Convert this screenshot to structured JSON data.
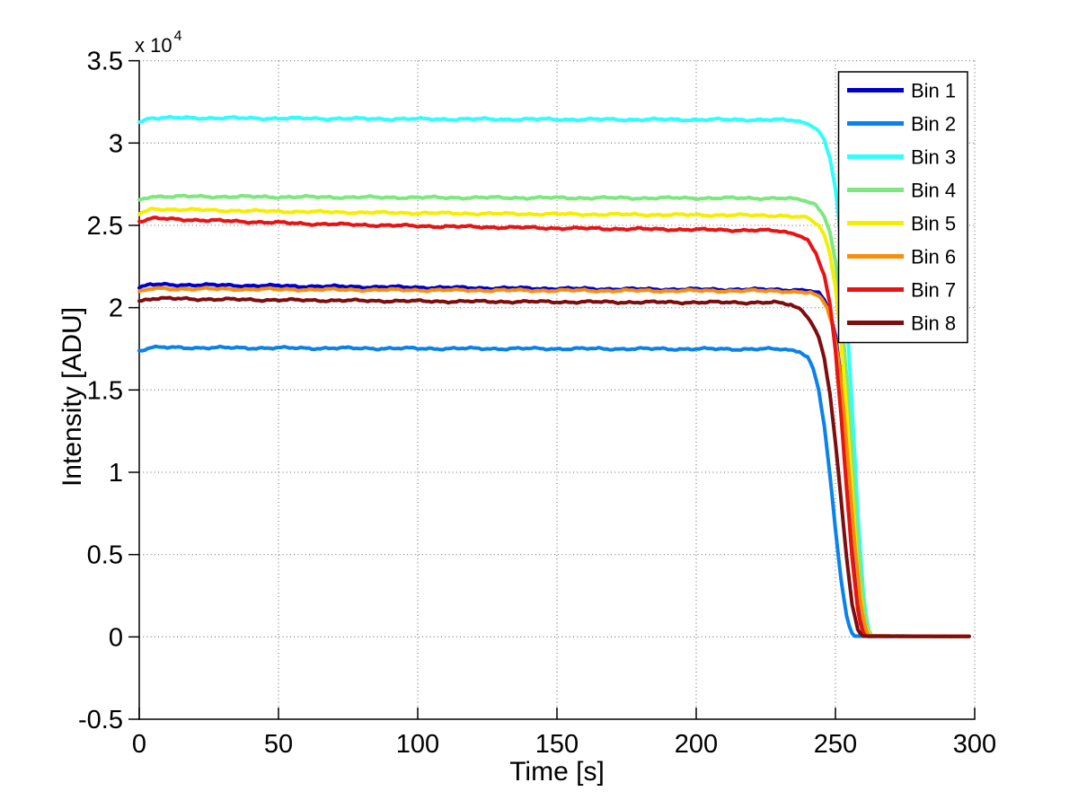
{
  "figure": {
    "background": "#ffffff"
  },
  "colors": {
    "axis": "#000000",
    "grid": "#858585",
    "legend_border": "#000000",
    "legend_background": "#ffffff"
  },
  "chart_data": {
    "type": "line",
    "title": "",
    "xlabel": "Time [s]",
    "ylabel": "Intensity [ADU]",
    "y_exponent": {
      "base": "x 10",
      "power": "4"
    },
    "xlim": [
      0,
      300
    ],
    "ylim": [
      -5000,
      35000
    ],
    "x_ticks": [
      0,
      50,
      100,
      150,
      200,
      250,
      300
    ],
    "x_tick_labels": [
      "0",
      "50",
      "100",
      "150",
      "200",
      "250",
      "300"
    ],
    "y_ticks": [
      -5000,
      0,
      5000,
      10000,
      15000,
      20000,
      25000,
      30000,
      35000
    ],
    "y_tick_labels": [
      "-0.5",
      "0",
      "0.5",
      "1",
      "1.5",
      "2",
      "2.5",
      "3",
      "3.5"
    ],
    "grid": true,
    "legend_position": "northeast",
    "series": [
      {
        "name": "Bin 1",
        "color": "#0000CC",
        "points": [
          [
            0,
            21200
          ],
          [
            4,
            21400
          ],
          [
            20,
            21380
          ],
          [
            60,
            21300
          ],
          [
            120,
            21200
          ],
          [
            180,
            21120
          ],
          [
            230,
            21100
          ],
          [
            240,
            21050
          ],
          [
            244,
            20850
          ],
          [
            246,
            20450
          ],
          [
            248,
            19700
          ],
          [
            250,
            18300
          ],
          [
            252,
            15800
          ],
          [
            254,
            12000
          ],
          [
            256,
            7300
          ],
          [
            258,
            3000
          ],
          [
            259.5,
            800
          ],
          [
            261,
            100
          ],
          [
            262,
            35
          ],
          [
            298,
            30
          ]
        ]
      },
      {
        "name": "Bin 2",
        "color": "#0A82EB",
        "points": [
          [
            0,
            17380
          ],
          [
            4,
            17580
          ],
          [
            30,
            17560
          ],
          [
            100,
            17520
          ],
          [
            180,
            17500
          ],
          [
            230,
            17480
          ],
          [
            237,
            17380
          ],
          [
            240,
            17000
          ],
          [
            242,
            16300
          ],
          [
            244,
            15000
          ],
          [
            246,
            12800
          ],
          [
            248,
            9800
          ],
          [
            250,
            6500
          ],
          [
            252,
            3500
          ],
          [
            254,
            1300
          ],
          [
            255.5,
            300
          ],
          [
            257,
            45
          ],
          [
            298,
            30
          ]
        ]
      },
      {
        "name": "Bin 3",
        "color": "#2EFEFE",
        "points": [
          [
            0,
            31300
          ],
          [
            4,
            31530
          ],
          [
            30,
            31520
          ],
          [
            100,
            31460
          ],
          [
            180,
            31430
          ],
          [
            225,
            31420
          ],
          [
            235,
            31380
          ],
          [
            241,
            31150
          ],
          [
            244,
            30750
          ],
          [
            246,
            30150
          ],
          [
            248,
            29100
          ],
          [
            250,
            27200
          ],
          [
            252,
            24100
          ],
          [
            254,
            19600
          ],
          [
            256,
            13900
          ],
          [
            258,
            7600
          ],
          [
            260,
            2700
          ],
          [
            261.5,
            600
          ],
          [
            263,
            55
          ],
          [
            298,
            30
          ]
        ]
      },
      {
        "name": "Bin 4",
        "color": "#7DE87D",
        "points": [
          [
            0,
            26520
          ],
          [
            4,
            26760
          ],
          [
            30,
            26740
          ],
          [
            100,
            26690
          ],
          [
            180,
            26660
          ],
          [
            230,
            26650
          ],
          [
            238,
            26550
          ],
          [
            243,
            26250
          ],
          [
            246,
            25600
          ],
          [
            248,
            24600
          ],
          [
            250,
            22800
          ],
          [
            252,
            19900
          ],
          [
            254,
            15800
          ],
          [
            256,
            10900
          ],
          [
            258,
            5900
          ],
          [
            260,
            2100
          ],
          [
            261.5,
            500
          ],
          [
            263,
            50
          ],
          [
            298,
            30
          ]
        ]
      },
      {
        "name": "Bin 5",
        "color": "#F5EE00",
        "points": [
          [
            0,
            25700
          ],
          [
            5,
            26000
          ],
          [
            30,
            25900
          ],
          [
            80,
            25780
          ],
          [
            130,
            25700
          ],
          [
            180,
            25650
          ],
          [
            230,
            25600
          ],
          [
            240,
            25450
          ],
          [
            244,
            25000
          ],
          [
            246,
            24400
          ],
          [
            248,
            23300
          ],
          [
            250,
            21300
          ],
          [
            252,
            18100
          ],
          [
            254,
            13700
          ],
          [
            256,
            8700
          ],
          [
            258,
            3900
          ],
          [
            260,
            1100
          ],
          [
            261.5,
            250
          ],
          [
            263,
            40
          ],
          [
            298,
            30
          ]
        ]
      },
      {
        "name": "Bin 6",
        "color": "#FA8E0A",
        "points": [
          [
            0,
            20950
          ],
          [
            5,
            21160
          ],
          [
            40,
            21120
          ],
          [
            110,
            21060
          ],
          [
            180,
            21030
          ],
          [
            230,
            21020
          ],
          [
            241,
            20900
          ],
          [
            245,
            20550
          ],
          [
            247,
            20000
          ],
          [
            249,
            18900
          ],
          [
            251,
            16900
          ],
          [
            253,
            13800
          ],
          [
            255,
            9700
          ],
          [
            257,
            5500
          ],
          [
            259,
            2100
          ],
          [
            260.5,
            600
          ],
          [
            262,
            55
          ],
          [
            298,
            30
          ]
        ]
      },
      {
        "name": "Bin 7",
        "color": "#E81414",
        "points": [
          [
            0,
            25250
          ],
          [
            5,
            25420
          ],
          [
            25,
            25300
          ],
          [
            60,
            25100
          ],
          [
            100,
            24960
          ],
          [
            150,
            24830
          ],
          [
            200,
            24740
          ],
          [
            228,
            24680
          ],
          [
            236,
            24500
          ],
          [
            240,
            24100
          ],
          [
            243,
            23300
          ],
          [
            246,
            21900
          ],
          [
            248,
            20200
          ],
          [
            250,
            17400
          ],
          [
            252,
            13500
          ],
          [
            254,
            9000
          ],
          [
            256,
            4800
          ],
          [
            258,
            1700
          ],
          [
            259.5,
            350
          ],
          [
            261,
            40
          ],
          [
            298,
            30
          ]
        ]
      },
      {
        "name": "Bin 8",
        "color": "#7E0D0D",
        "points": [
          [
            0,
            20420
          ],
          [
            5,
            20560
          ],
          [
            40,
            20480
          ],
          [
            110,
            20380
          ],
          [
            180,
            20330
          ],
          [
            228,
            20310
          ],
          [
            234,
            20180
          ],
          [
            238,
            19850
          ],
          [
            241,
            19250
          ],
          [
            244,
            18200
          ],
          [
            246,
            16900
          ],
          [
            248,
            14800
          ],
          [
            250,
            11800
          ],
          [
            252,
            8300
          ],
          [
            254,
            4800
          ],
          [
            256,
            2000
          ],
          [
            258,
            450
          ],
          [
            259.5,
            55
          ],
          [
            298,
            30
          ]
        ]
      }
    ]
  }
}
